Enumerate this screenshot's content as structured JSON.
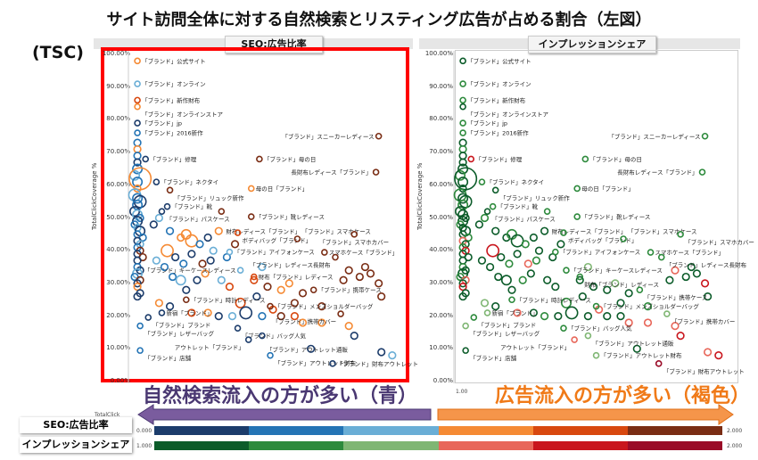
{
  "title": "サイト訪問全体に対する自然検索とリスティング広告が占める割合（左図）",
  "tsc_label": "(TSC)",
  "panels": [
    {
      "header": "SEO:広告比率"
    },
    {
      "header": "インプレッションシェア"
    }
  ],
  "colors": {
    "seo": [
      "#1c3c6b",
      "#2474b5",
      "#6aaed6",
      "#f58a34",
      "#d8480f",
      "#7a2d14"
    ],
    "imp": [
      "#0c5c2a",
      "#2d8a3c",
      "#7fb673",
      "#e8675a",
      "#c9161d",
      "#9a0b27"
    ],
    "highlight_box": "#ff0000",
    "left_text": "#4a3872",
    "right_text": "#f07a18"
  },
  "chart_data": {
    "type": "scatter",
    "title": "サイト訪問全体に対する自然検索とリスティング広告が占める割合（左図）",
    "ylabel": "TotalClickCoverage %",
    "xlabel": "TotalClick",
    "y_ticks": [
      "100.00%",
      "90.00%",
      "80.00%",
      "70.00%",
      "60.00%",
      "50.00%",
      "40.00%",
      "30.00%",
      "20.00%",
      "10.00%",
      "0.00%"
    ],
    "x_tick_right": "1.00",
    "ylim": [
      0,
      100
    ],
    "xlim": [
      0,
      100
    ],
    "labeled_points": [
      {
        "label": "「ブランド」公式サイト",
        "x": 2,
        "y": 98,
        "seo": 3,
        "imp": 0
      },
      {
        "label": "「ブランド」オンライン",
        "x": 2,
        "y": 91,
        "seo": 2,
        "imp": 1
      },
      {
        "label": "「ブランド」新作財布",
        "x": 2,
        "y": 86,
        "seo": 4,
        "imp": 1
      },
      {
        "label": "「ブランド」オンラインストア",
        "x": 2,
        "y": 84,
        "seo": 3,
        "imp": 0
      },
      {
        "label": "「ブランド」jp",
        "x": 2,
        "y": 79,
        "seo": 0,
        "imp": 1
      },
      {
        "label": "「ブランド」2016新作",
        "x": 2,
        "y": 76,
        "seo": 1,
        "imp": 1
      },
      {
        "label": "「ブランド」修理",
        "x": 5,
        "y": 68,
        "seo": 0,
        "imp": 4
      },
      {
        "label": "「ブランド」母の日",
        "x": 47,
        "y": 68,
        "seo": 5,
        "imp": 1
      },
      {
        "label": "「ブランド」スニーカーレディース",
        "x": 91,
        "y": 75,
        "seo": 5,
        "imp": 1
      },
      {
        "label": "長財布レディース「ブランド」",
        "x": 90,
        "y": 64,
        "seo": 5,
        "imp": 1
      },
      {
        "label": "「ブランド」ネクタイ",
        "x": 9,
        "y": 61,
        "seo": 0,
        "imp": 1
      },
      {
        "label": "「ブランド」リュック新作",
        "x": 14,
        "y": 58.5,
        "seo": 5,
        "imp": 0
      },
      {
        "label": "母の日「ブランド」",
        "x": 44,
        "y": 59,
        "seo": 3,
        "imp": 1
      },
      {
        "label": "「ブランド」靴",
        "x": 13,
        "y": 53.5,
        "seo": 0,
        "imp": 1
      },
      {
        "label": "「ブランド」パスケース",
        "x": 11,
        "y": 52,
        "seo": 0,
        "imp": 0
      },
      {
        "label": "財布レディース「ブランド」",
        "x": 33,
        "y": 52,
        "seo": 5,
        "imp": 1
      },
      {
        "label": "「ブランド」靴レディース",
        "x": 44,
        "y": 50.4,
        "seo": 5,
        "imp": 1
      },
      {
        "label": "ボディバッグ「ブランド」",
        "x": 39,
        "y": 45.5,
        "seo": 4,
        "imp": 1
      },
      {
        "label": "「ブランド」スマホケース",
        "x": 61,
        "y": 43.6,
        "seo": 5,
        "imp": 1
      },
      {
        "label": "「ブランド」スマホカバー",
        "x": 82,
        "y": 45,
        "seo": 5,
        "imp": 1
      },
      {
        "label": "スマホケース「ブランド」",
        "x": 71,
        "y": 39.5,
        "seo": 5,
        "imp": 1
      },
      {
        "label": "「ブランド」アイフォンケース",
        "x": 36,
        "y": 39.6,
        "seo": 2,
        "imp": 1
      },
      {
        "label": "「ブランド」レディース長財布",
        "x": 75,
        "y": 38,
        "seo": 5,
        "imp": 1
      },
      {
        "label": "「ブランド」キーケースレディース",
        "x": 40,
        "y": 34,
        "seo": 2,
        "imp": 1
      },
      {
        "label": "財布「ブランド」レディース",
        "x": 45,
        "y": 32,
        "seo": 4,
        "imp": 1
      },
      {
        "label": "「ブランド」時計レディース",
        "x": 20,
        "y": 25,
        "seo": 5,
        "imp": 1
      },
      {
        "label": "「ブランド」携帯ケース",
        "x": 67,
        "y": 28,
        "seo": 5,
        "imp": 1
      },
      {
        "label": "「ブランド」メンズショルダーバッグ",
        "x": 51,
        "y": 23,
        "seo": 5,
        "imp": 1
      },
      {
        "label": "新宿「ブランド」",
        "x": 11,
        "y": 21,
        "seo": 0,
        "imp": 2
      },
      {
        "label": "「ブランド」ブランド",
        "x": 6,
        "y": 19.6,
        "seo": 0,
        "imp": 1
      },
      {
        "label": "「ブランド」携帯カバー",
        "x": 77,
        "y": 20.7,
        "seo": 5,
        "imp": 2
      },
      {
        "label": "「ブランド」レザーバッグ",
        "x": 3,
        "y": 17,
        "seo": 1,
        "imp": 2
      },
      {
        "label": "「ブランド」バッグ人気",
        "x": 39,
        "y": 16.3,
        "seo": 0,
        "imp": 1
      },
      {
        "label": "「ブランド」アウトレット通販",
        "x": 48,
        "y": 14,
        "seo": 0,
        "imp": 2
      },
      {
        "label": "アウトレット「ブランド」",
        "x": 43,
        "y": 12.8,
        "seo": 0,
        "imp": 3
      },
      {
        "label": "「ブランド」店舗",
        "x": 3,
        "y": 9.5,
        "seo": 1,
        "imp": 0
      },
      {
        "label": "「ブランド」アウトレット財布",
        "x": 51,
        "y": 8,
        "seo": 1,
        "imp": 2
      },
      {
        "label": "「ブランド」財布アウトレット",
        "x": 74,
        "y": 5.5,
        "seo": 0,
        "imp": 5
      }
    ],
    "points": [
      [
        2,
        73,
        1,
        0,
        2
      ],
      [
        2,
        71,
        3,
        1,
        2
      ],
      [
        2,
        69,
        1,
        0,
        2
      ],
      [
        2,
        67,
        0,
        0,
        2
      ],
      [
        2,
        65,
        1,
        0,
        3
      ],
      [
        1,
        63,
        2,
        1,
        3
      ],
      [
        3,
        62,
        3,
        0,
        8
      ],
      [
        2,
        61,
        1,
        0,
        3
      ],
      [
        2,
        59,
        3,
        0,
        2
      ],
      [
        1,
        57,
        2,
        1,
        4
      ],
      [
        2,
        56,
        1,
        0,
        3
      ],
      [
        3,
        55,
        0,
        0,
        4
      ],
      [
        2,
        54,
        1,
        1,
        3
      ],
      [
        1,
        52,
        0,
        0,
        3
      ],
      [
        2,
        51,
        2,
        0,
        3
      ],
      [
        3,
        50,
        1,
        0,
        2
      ],
      [
        2,
        49,
        0,
        0,
        3
      ],
      [
        1,
        48,
        1,
        1,
        2
      ],
      [
        2,
        47,
        2,
        0,
        2
      ],
      [
        3,
        46,
        0,
        0,
        3
      ],
      [
        2,
        45,
        1,
        0,
        2
      ],
      [
        4,
        44,
        1,
        1,
        2
      ],
      [
        2,
        43,
        0,
        3,
        2
      ],
      [
        3,
        42,
        2,
        0,
        2
      ],
      [
        2,
        41,
        1,
        1,
        2
      ],
      [
        3,
        40,
        5,
        4,
        2
      ],
      [
        2,
        39,
        0,
        0,
        2
      ],
      [
        4,
        38,
        5,
        0,
        2
      ],
      [
        2,
        37,
        0,
        0,
        2
      ],
      [
        2,
        35,
        1,
        1,
        2
      ],
      [
        3,
        34,
        0,
        0,
        2
      ],
      [
        2,
        33,
        2,
        0,
        3
      ],
      [
        1,
        32,
        1,
        1,
        2
      ],
      [
        3,
        31,
        5,
        3,
        2
      ],
      [
        2,
        30,
        0,
        0,
        2
      ],
      [
        2,
        29,
        3,
        4,
        2
      ],
      [
        3,
        27,
        0,
        0,
        2
      ],
      [
        2,
        26,
        0,
        0,
        2
      ],
      [
        8,
        48,
        0,
        0,
        2
      ],
      [
        10,
        50,
        2,
        1,
        2
      ],
      [
        14,
        46,
        1,
        0,
        2
      ],
      [
        18,
        44,
        3,
        0,
        2
      ],
      [
        20,
        45,
        3,
        1,
        3
      ],
      [
        22,
        43,
        3,
        0,
        4
      ],
      [
        25,
        42,
        1,
        1,
        2
      ],
      [
        13,
        40,
        3,
        4,
        4
      ],
      [
        28,
        44,
        0,
        0,
        2
      ],
      [
        32,
        46,
        3,
        0,
        2
      ],
      [
        30,
        40,
        2,
        0,
        2
      ],
      [
        9,
        37,
        2,
        0,
        2
      ],
      [
        12,
        35,
        1,
        0,
        2
      ],
      [
        16,
        38,
        0,
        0,
        2
      ],
      [
        19,
        36,
        1,
        1,
        2
      ],
      [
        22,
        39,
        0,
        0,
        2
      ],
      [
        26,
        36,
        5,
        3,
        2
      ],
      [
        29,
        37,
        0,
        1,
        2
      ],
      [
        35,
        38,
        1,
        0,
        2
      ],
      [
        38,
        42,
        5,
        0,
        2
      ],
      [
        15,
        32,
        1,
        0,
        2
      ],
      [
        18,
        31,
        2,
        0,
        3
      ],
      [
        24,
        31,
        0,
        1,
        2
      ],
      [
        27,
        33,
        3,
        0,
        2
      ],
      [
        33,
        31,
        2,
        0,
        2
      ],
      [
        20,
        28,
        0,
        0,
        2
      ],
      [
        36,
        29,
        4,
        0,
        2
      ],
      [
        40,
        24,
        4,
        1,
        3
      ],
      [
        46,
        26,
        0,
        0,
        2
      ],
      [
        50,
        29,
        5,
        0,
        2
      ],
      [
        55,
        28,
        3,
        0,
        2
      ],
      [
        58,
        30,
        3,
        2,
        2
      ],
      [
        60,
        24,
        5,
        0,
        2
      ],
      [
        63,
        27,
        5,
        0,
        2
      ],
      [
        70,
        23,
        5,
        1,
        2
      ],
      [
        78,
        31,
        5,
        0,
        2
      ],
      [
        80,
        34,
        5,
        3,
        2
      ],
      [
        84,
        32,
        5,
        0,
        2
      ],
      [
        88,
        33,
        5,
        0,
        2
      ],
      [
        91,
        30,
        5,
        4,
        2
      ],
      [
        92,
        26,
        5,
        0,
        2
      ],
      [
        86,
        35,
        5,
        0,
        2
      ],
      [
        10,
        24,
        3,
        2,
        2
      ],
      [
        14,
        23,
        0,
        0,
        2
      ],
      [
        22,
        21,
        4,
        3,
        2
      ],
      [
        28,
        21,
        3,
        0,
        2
      ],
      [
        32,
        20,
        0,
        1,
        2
      ],
      [
        37,
        20,
        2,
        0,
        2
      ],
      [
        42,
        21,
        0,
        0,
        4
      ],
      [
        48,
        20,
        1,
        0,
        2
      ],
      [
        55,
        20,
        5,
        0,
        2
      ],
      [
        63,
        18,
        3,
        3,
        2
      ],
      [
        70,
        18,
        3,
        3,
        2
      ],
      [
        82,
        14,
        0,
        4,
        2
      ],
      [
        80,
        17,
        3,
        3,
        2
      ],
      [
        60,
        20,
        4,
        0,
        2
      ],
      [
        52,
        22,
        4,
        3,
        2
      ],
      [
        96,
        8,
        2,
        4,
        2
      ],
      [
        92,
        9,
        0,
        3,
        2
      ],
      [
        66,
        10,
        0,
        0,
        2
      ],
      [
        45,
        31,
        4,
        0,
        2
      ],
      [
        48,
        35,
        2,
        2,
        2
      ]
    ]
  },
  "annotations": {
    "left": "自然検索流入の方が多い（青）",
    "right": "広告流入の方が多い（褐色）"
  },
  "legend": {
    "seo": {
      "label": "SEO:広告比率",
      "min": "0.000",
      "max": "2.000"
    },
    "imp": {
      "label": "インプレッションシェア",
      "min": "1.000",
      "max": "2.000"
    },
    "axis_footer": "TotalClick"
  }
}
